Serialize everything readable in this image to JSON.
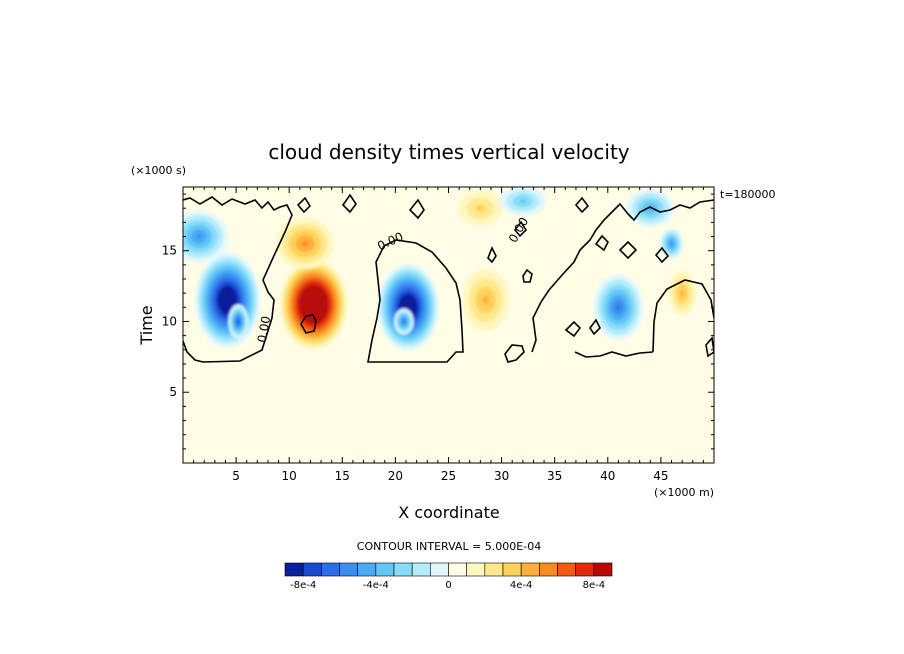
{
  "chart_data": {
    "type": "heatmap",
    "title": "cloud density times vertical velocity",
    "xlabel": "X coordinate",
    "ylabel": "Time",
    "x_unit": "(×1000 m)",
    "y_unit": "(×1000 s)",
    "time_stamp": "t=180000",
    "xlim": [
      0,
      50
    ],
    "ylim": [
      0,
      19.5
    ],
    "x_ticks": [
      5,
      10,
      15,
      20,
      25,
      30,
      35,
      40,
      45
    ],
    "y_ticks": [
      5,
      10,
      15
    ],
    "contour_interval_text": "CONTOUR INTERVAL = 5.000E-04",
    "zero_contour_label": "0.00",
    "background_color": "#fffde5",
    "colorbar": {
      "colors": [
        "#0a1f9c",
        "#1848d0",
        "#2a6ee8",
        "#3a8ef0",
        "#4aaaf5",
        "#62c6f7",
        "#88dcf8",
        "#b4ecfa",
        "#e0f8fc",
        "#fffde5",
        "#fff6c0",
        "#ffe88c",
        "#fed25a",
        "#fcb03a",
        "#f88a22",
        "#f25a14",
        "#e02a0c",
        "#b80808"
      ],
      "tick_labels": [
        "-8e-4",
        "-4e-4",
        "0",
        "4e-4",
        "8e-4"
      ],
      "tick_values": [
        -0.0008,
        -0.0004,
        0,
        0.0004,
        0.0008
      ]
    },
    "features": [
      {
        "kind": "negative",
        "x": 4.2,
        "y": 11.5,
        "sx": 3.2,
        "sy": 3.5,
        "amp": -0.0006
      },
      {
        "kind": "negative",
        "x": 5.2,
        "y": 10.0,
        "sx": 1.0,
        "sy": 1.3,
        "amp": -0.0004
      },
      {
        "kind": "negative",
        "x": 1.5,
        "y": 16.0,
        "sx": 3.0,
        "sy": 2.0,
        "amp": -0.0003
      },
      {
        "kind": "positive",
        "x": 12.3,
        "y": 11.2,
        "sx": 3.3,
        "sy": 3.3,
        "amp": 0.00065
      },
      {
        "kind": "positive",
        "x": 11.5,
        "y": 15.5,
        "sx": 3.0,
        "sy": 2.0,
        "amp": 0.00025
      },
      {
        "kind": "negative",
        "x": 21.2,
        "y": 11.0,
        "sx": 3.0,
        "sy": 3.2,
        "amp": -0.0006
      },
      {
        "kind": "negative",
        "x": 20.8,
        "y": 10.0,
        "sx": 1.0,
        "sy": 1.0,
        "amp": -0.00035
      },
      {
        "kind": "positive",
        "x": 28.5,
        "y": 11.5,
        "sx": 2.5,
        "sy": 2.5,
        "amp": 0.0002
      },
      {
        "kind": "positive",
        "x": 28.0,
        "y": 18.0,
        "sx": 2.5,
        "sy": 1.5,
        "amp": 0.00015
      },
      {
        "kind": "negative",
        "x": 32.0,
        "y": 18.5,
        "sx": 2.5,
        "sy": 1.2,
        "amp": -0.0002
      },
      {
        "kind": "negative",
        "x": 41.0,
        "y": 11.0,
        "sx": 2.5,
        "sy": 2.5,
        "amp": -0.00035
      },
      {
        "kind": "negative",
        "x": 44.0,
        "y": 18.0,
        "sx": 2.5,
        "sy": 1.5,
        "amp": -0.00025
      },
      {
        "kind": "negative",
        "x": 46.0,
        "y": 15.5,
        "sx": 1.2,
        "sy": 1.2,
        "amp": -0.0003
      },
      {
        "kind": "positive",
        "x": 47.0,
        "y": 12.0,
        "sx": 1.5,
        "sy": 1.8,
        "amp": 0.0002
      }
    ]
  }
}
